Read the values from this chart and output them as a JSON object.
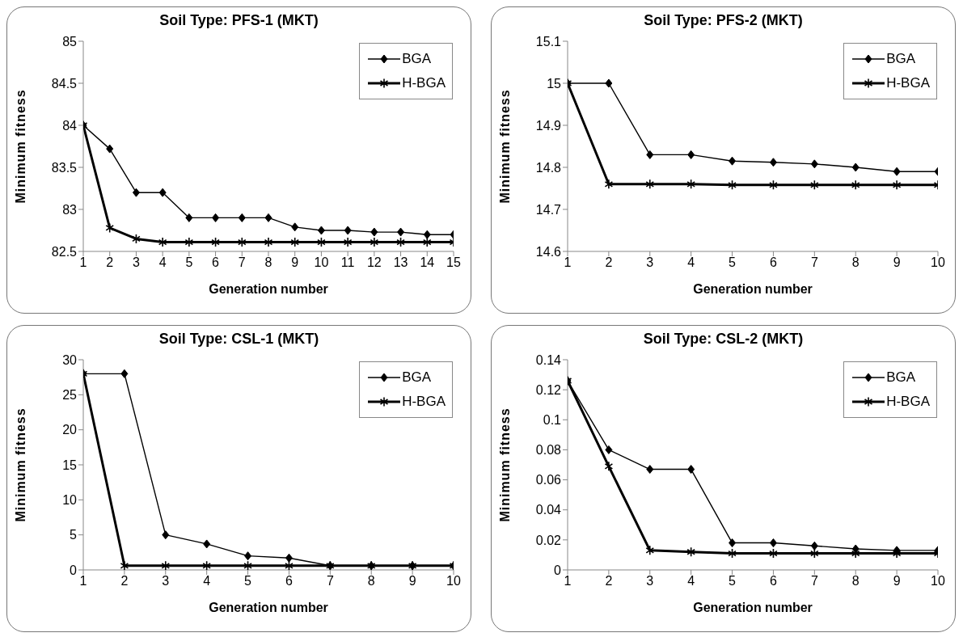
{
  "chart_data": [
    {
      "type": "line",
      "title": "Soil Type: PFS-1 (MKT)",
      "xlabel": "Generation number",
      "ylabel": "Minimum fitness",
      "x": [
        1,
        2,
        3,
        4,
        5,
        6,
        7,
        8,
        9,
        10,
        11,
        12,
        13,
        14,
        15
      ],
      "xlim": [
        1,
        15
      ],
      "xticks": [
        1,
        2,
        3,
        4,
        5,
        6,
        7,
        8,
        9,
        10,
        11,
        12,
        13,
        14,
        15
      ],
      "ylim": [
        82.5,
        85
      ],
      "yticks": [
        82.5,
        83,
        83.5,
        84,
        84.5,
        85
      ],
      "grid": false,
      "legend": "top right",
      "series": [
        {
          "name": "BGA",
          "color": "#000000",
          "marker": "diamond",
          "values": [
            84,
            83.72,
            83.2,
            83.2,
            82.9,
            82.9,
            82.9,
            82.9,
            82.79,
            82.75,
            82.75,
            82.73,
            82.73,
            82.7,
            82.7
          ]
        },
        {
          "name": "H-BGA",
          "color": "#000000",
          "marker": "cross",
          "values": [
            84,
            82.78,
            82.65,
            82.61,
            82.61,
            82.61,
            82.61,
            82.61,
            82.61,
            82.61,
            82.61,
            82.61,
            82.61,
            82.61,
            82.61
          ]
        }
      ]
    },
    {
      "type": "line",
      "title": "Soil Type: PFS-2 (MKT)",
      "xlabel": "Generation number",
      "ylabel": "Minimum fitness",
      "x": [
        1,
        2,
        3,
        4,
        5,
        6,
        7,
        8,
        9,
        10
      ],
      "xlim": [
        1,
        10
      ],
      "xticks": [
        1,
        2,
        3,
        4,
        5,
        6,
        7,
        8,
        9,
        10
      ],
      "ylim": [
        14.6,
        15.1
      ],
      "yticks": [
        14.6,
        14.7,
        14.8,
        14.9,
        15,
        15.1
      ],
      "grid": false,
      "legend": "top right",
      "series": [
        {
          "name": "BGA",
          "color": "#000000",
          "marker": "diamond",
          "values": [
            15,
            15,
            14.83,
            14.83,
            14.815,
            14.812,
            14.808,
            14.8,
            14.79,
            14.79
          ]
        },
        {
          "name": "H-BGA",
          "color": "#000000",
          "marker": "cross",
          "values": [
            15,
            14.76,
            14.76,
            14.76,
            14.758,
            14.758,
            14.758,
            14.758,
            14.758,
            14.758
          ]
        }
      ]
    },
    {
      "type": "line",
      "title": "Soil Type: CSL-1 (MKT)",
      "xlabel": "Generation number",
      "ylabel": "Minimum fitness",
      "x": [
        1,
        2,
        3,
        4,
        5,
        6,
        7,
        8,
        9,
        10
      ],
      "xlim": [
        1,
        10
      ],
      "xticks": [
        1,
        2,
        3,
        4,
        5,
        6,
        7,
        8,
        9,
        10
      ],
      "ylim": [
        0,
        30
      ],
      "yticks": [
        0,
        5,
        10,
        15,
        20,
        25,
        30
      ],
      "grid": false,
      "legend": "top right",
      "series": [
        {
          "name": "BGA",
          "color": "#000000",
          "marker": "diamond",
          "values": [
            28,
            28,
            5,
            3.7,
            2,
            1.7,
            0.6,
            0.6,
            0.6,
            0.6
          ]
        },
        {
          "name": "H-BGA",
          "color": "#000000",
          "marker": "cross",
          "values": [
            28,
            0.6,
            0.6,
            0.6,
            0.6,
            0.6,
            0.6,
            0.6,
            0.6,
            0.6
          ]
        }
      ]
    },
    {
      "type": "line",
      "title": "Soil Type: CSL-2 (MKT)",
      "xlabel": "Generation number",
      "ylabel": "Minimum fitness",
      "x": [
        1,
        2,
        3,
        4,
        5,
        6,
        7,
        8,
        9,
        10
      ],
      "xlim": [
        1,
        10
      ],
      "xticks": [
        1,
        2,
        3,
        4,
        5,
        6,
        7,
        8,
        9,
        10
      ],
      "ylim": [
        0,
        0.14
      ],
      "yticks": [
        0,
        0.02,
        0.04,
        0.06,
        0.08,
        0.1,
        0.12,
        0.14
      ],
      "grid": false,
      "legend": "top right",
      "series": [
        {
          "name": "BGA",
          "color": "#000000",
          "marker": "diamond",
          "values": [
            0.126,
            0.08,
            0.067,
            0.067,
            0.018,
            0.018,
            0.016,
            0.014,
            0.013,
            0.013
          ]
        },
        {
          "name": "H-BGA",
          "color": "#000000",
          "marker": "cross",
          "values": [
            0.126,
            0.069,
            0.013,
            0.012,
            0.011,
            0.011,
            0.011,
            0.011,
            0.011,
            0.011
          ]
        }
      ]
    }
  ]
}
